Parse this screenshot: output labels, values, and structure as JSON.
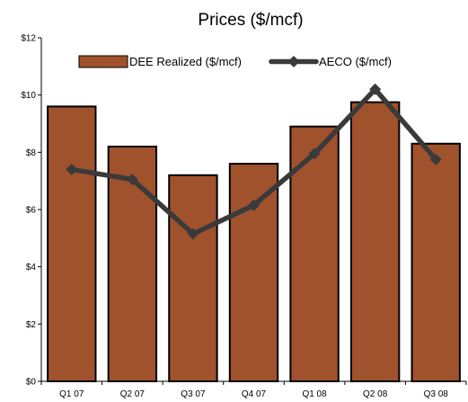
{
  "chart_data": {
    "type": "bar",
    "title": "Prices ($/mcf)",
    "categories": [
      "Q1 07",
      "Q2 07",
      "Q3 07",
      "Q4 07",
      "Q1 08",
      "Q2 08",
      "Q3 08"
    ],
    "series": [
      {
        "name": "DEE Realized ($/mcf)",
        "type": "bar",
        "color": "#a0522d",
        "values": [
          9.6,
          8.2,
          7.2,
          7.6,
          8.9,
          9.75,
          8.3
        ]
      },
      {
        "name": "AECO ($/mcf)",
        "type": "line",
        "color": "#3a3a3a",
        "values": [
          7.4,
          7.05,
          5.15,
          6.15,
          7.95,
          10.2,
          7.75
        ]
      }
    ],
    "ylim": [
      0,
      12
    ],
    "yticks": [
      0,
      2,
      4,
      6,
      8,
      10,
      12
    ],
    "ytick_labels": [
      "$0",
      "$2",
      "$4",
      "$6",
      "$8",
      "$10",
      "$12"
    ],
    "xlabel": "",
    "ylabel": "",
    "grid": false,
    "legend_position": "top-center",
    "colors": {
      "bar_fill": "#a0522d",
      "bar_stroke": "#000000",
      "line": "#3a3a3a",
      "axis": "#000000",
      "background": "#ffffff"
    }
  }
}
